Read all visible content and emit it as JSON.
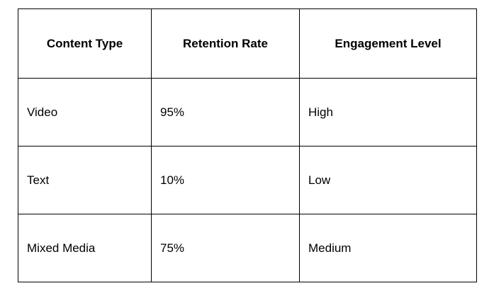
{
  "chart_data": {
    "type": "table",
    "title": "",
    "columns": [
      "Content Type",
      "Retention Rate",
      "Engagement Level"
    ],
    "rows": [
      [
        "Video",
        "95%",
        "High"
      ],
      [
        "Text",
        "10%",
        "Low"
      ],
      [
        "Mixed Media",
        "75%",
        "Medium"
      ]
    ]
  },
  "colors": {
    "border": "#000000",
    "text": "#000000",
    "background": "#ffffff"
  }
}
